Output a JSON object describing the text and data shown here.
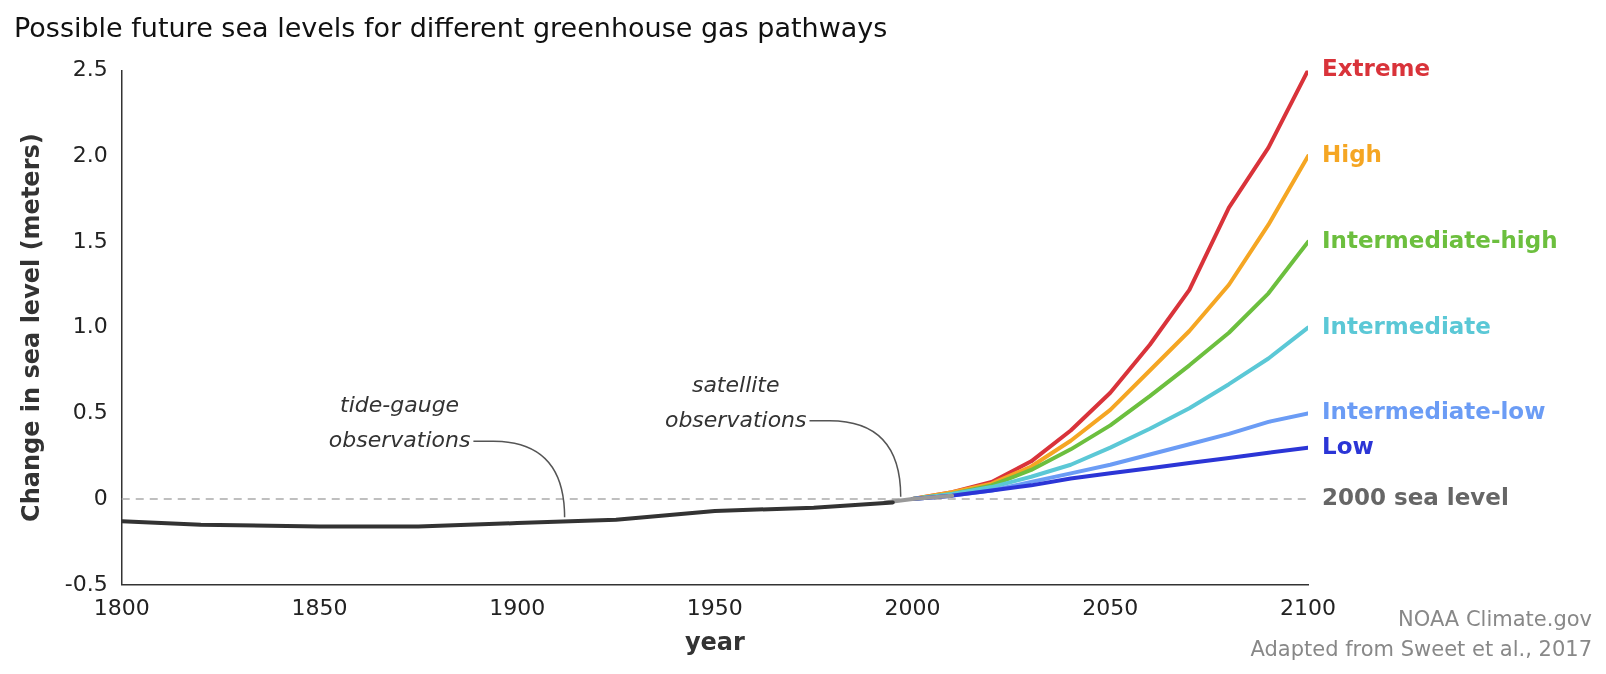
{
  "chart_data": {
    "type": "line",
    "title": "Possible future sea levels for different greenhouse gas pathways",
    "xlabel": "year",
    "ylabel": "Change in sea level (meters)",
    "xlim": [
      1800,
      2100
    ],
    "xticks": [
      1800,
      1850,
      1900,
      1950,
      2000,
      2050,
      2100
    ],
    "ylim": [
      -0.5,
      2.5
    ],
    "yticks": [
      {
        "value": -0.5,
        "label": "-0.5"
      },
      {
        "value": 0,
        "label": "0"
      },
      {
        "value": 0.5,
        "label": "0.5"
      },
      {
        "value": 1,
        "label": "1.0"
      },
      {
        "value": 1.5,
        "label": "1.5"
      },
      {
        "value": 2,
        "label": "2.0"
      },
      {
        "value": 2.5,
        "label": "2.5"
      }
    ],
    "grid": false,
    "legend": false,
    "marker": "none",
    "line_style": "solid",
    "series": [
      {
        "color": "#333333",
        "x": [
          1800,
          1820,
          1850,
          1875,
          1900,
          1925,
          1950,
          1975,
          1995
        ],
        "values": [
          -0.13,
          -0.15,
          -0.16,
          -0.16,
          -0.14,
          -0.12,
          -0.07,
          -0.05,
          -0.02
        ]
      },
      {
        "color": "#999999",
        "x": [
          1993,
          2000,
          2010
        ],
        "values": [
          -0.02,
          0,
          0.02
        ]
      },
      {
        "name": "Low",
        "color": "#2b35d6",
        "x": [
          2000,
          2010,
          2020,
          2030,
          2040,
          2050,
          2060,
          2070,
          2080,
          2090,
          2100
        ],
        "values": [
          0,
          0.02,
          0.05,
          0.08,
          0.12,
          0.15,
          0.18,
          0.21,
          0.24,
          0.27,
          0.3
        ]
      },
      {
        "name": "Intermediate-low",
        "color": "#6b9cf5",
        "x": [
          2000,
          2010,
          2020,
          2030,
          2040,
          2050,
          2060,
          2070,
          2080,
          2090,
          2100
        ],
        "values": [
          0,
          0.02,
          0.05,
          0.1,
          0.15,
          0.2,
          0.26,
          0.32,
          0.38,
          0.45,
          0.5
        ]
      },
      {
        "name": "Intermediate",
        "color": "#5bc8d6",
        "x": [
          2000,
          2010,
          2020,
          2030,
          2040,
          2050,
          2060,
          2070,
          2080,
          2090,
          2100
        ],
        "values": [
          0,
          0.03,
          0.07,
          0.13,
          0.2,
          0.3,
          0.41,
          0.53,
          0.67,
          0.82,
          1.0
        ]
      },
      {
        "name": "Intermediate-high",
        "color": "#6cbf3e",
        "x": [
          2000,
          2010,
          2020,
          2030,
          2040,
          2050,
          2060,
          2070,
          2080,
          2090,
          2100
        ],
        "values": [
          0,
          0.03,
          0.08,
          0.17,
          0.29,
          0.43,
          0.6,
          0.78,
          0.97,
          1.2,
          1.5
        ]
      },
      {
        "name": "High",
        "color": "#f5a623",
        "x": [
          2000,
          2010,
          2020,
          2030,
          2040,
          2050,
          2060,
          2070,
          2080,
          2090,
          2100
        ],
        "values": [
          0,
          0.04,
          0.09,
          0.19,
          0.34,
          0.52,
          0.75,
          0.98,
          1.25,
          1.6,
          2.0
        ]
      },
      {
        "name": "Extreme",
        "color": "#d9333a",
        "x": [
          2000,
          2010,
          2020,
          2030,
          2040,
          2050,
          2060,
          2070,
          2080,
          2090,
          2100
        ],
        "values": [
          0,
          0.04,
          0.1,
          0.22,
          0.4,
          0.62,
          0.9,
          1.22,
          1.7,
          2.05,
          2.5
        ]
      }
    ],
    "ref_lines": [
      {
        "axis": "y",
        "value": 0,
        "label": "2000 sea level",
        "color": "#aaaaaa",
        "line_style": "dashed"
      }
    ],
    "annotations": [
      {
        "text": "tide-gauge observations",
        "x": 1912,
        "y": -0.13
      },
      {
        "text": "satellite observations",
        "x": 1997,
        "y": -0.01
      },
      "NOAA Climate.gov",
      "Adapted from Sweet et al., 2017"
    ]
  }
}
